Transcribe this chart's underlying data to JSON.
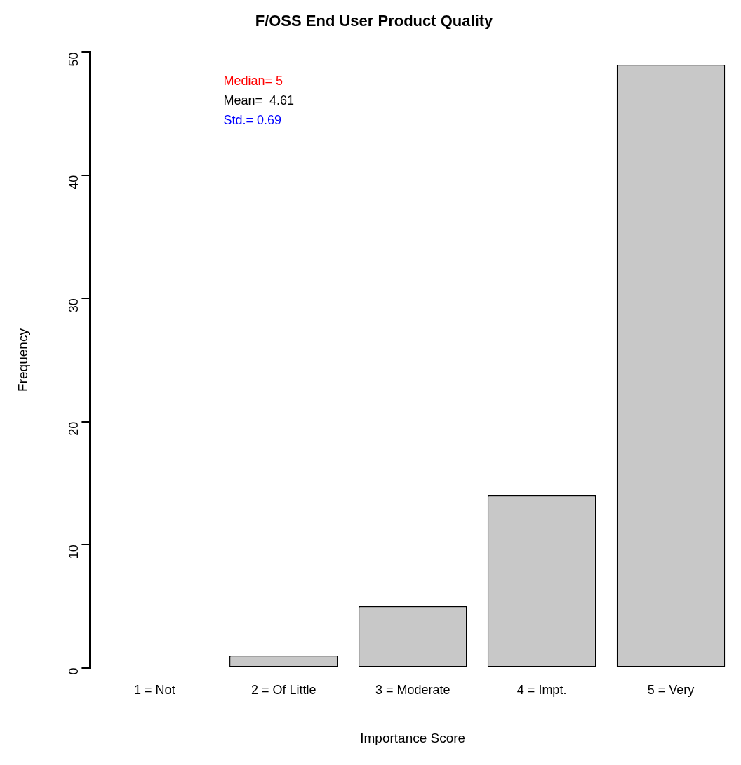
{
  "chart_data": {
    "type": "bar",
    "title": "F/OSS End User Product Quality",
    "xlabel": "Importance Score",
    "ylabel": "Frequency",
    "categories": [
      "1 = Not",
      "2 = Of Little",
      "3 = Moderate",
      "4 = Impt.",
      "5 = Very"
    ],
    "values": [
      0,
      1,
      5,
      14,
      49
    ],
    "color": "#c8c8c8",
    "ylim": [
      0,
      50
    ],
    "yticks": [
      0,
      10,
      20,
      30,
      40,
      50
    ],
    "grid": false,
    "legend": false,
    "annotations": [
      "Median= 5",
      "Mean=  4.61",
      "Std.= 0.69"
    ]
  }
}
